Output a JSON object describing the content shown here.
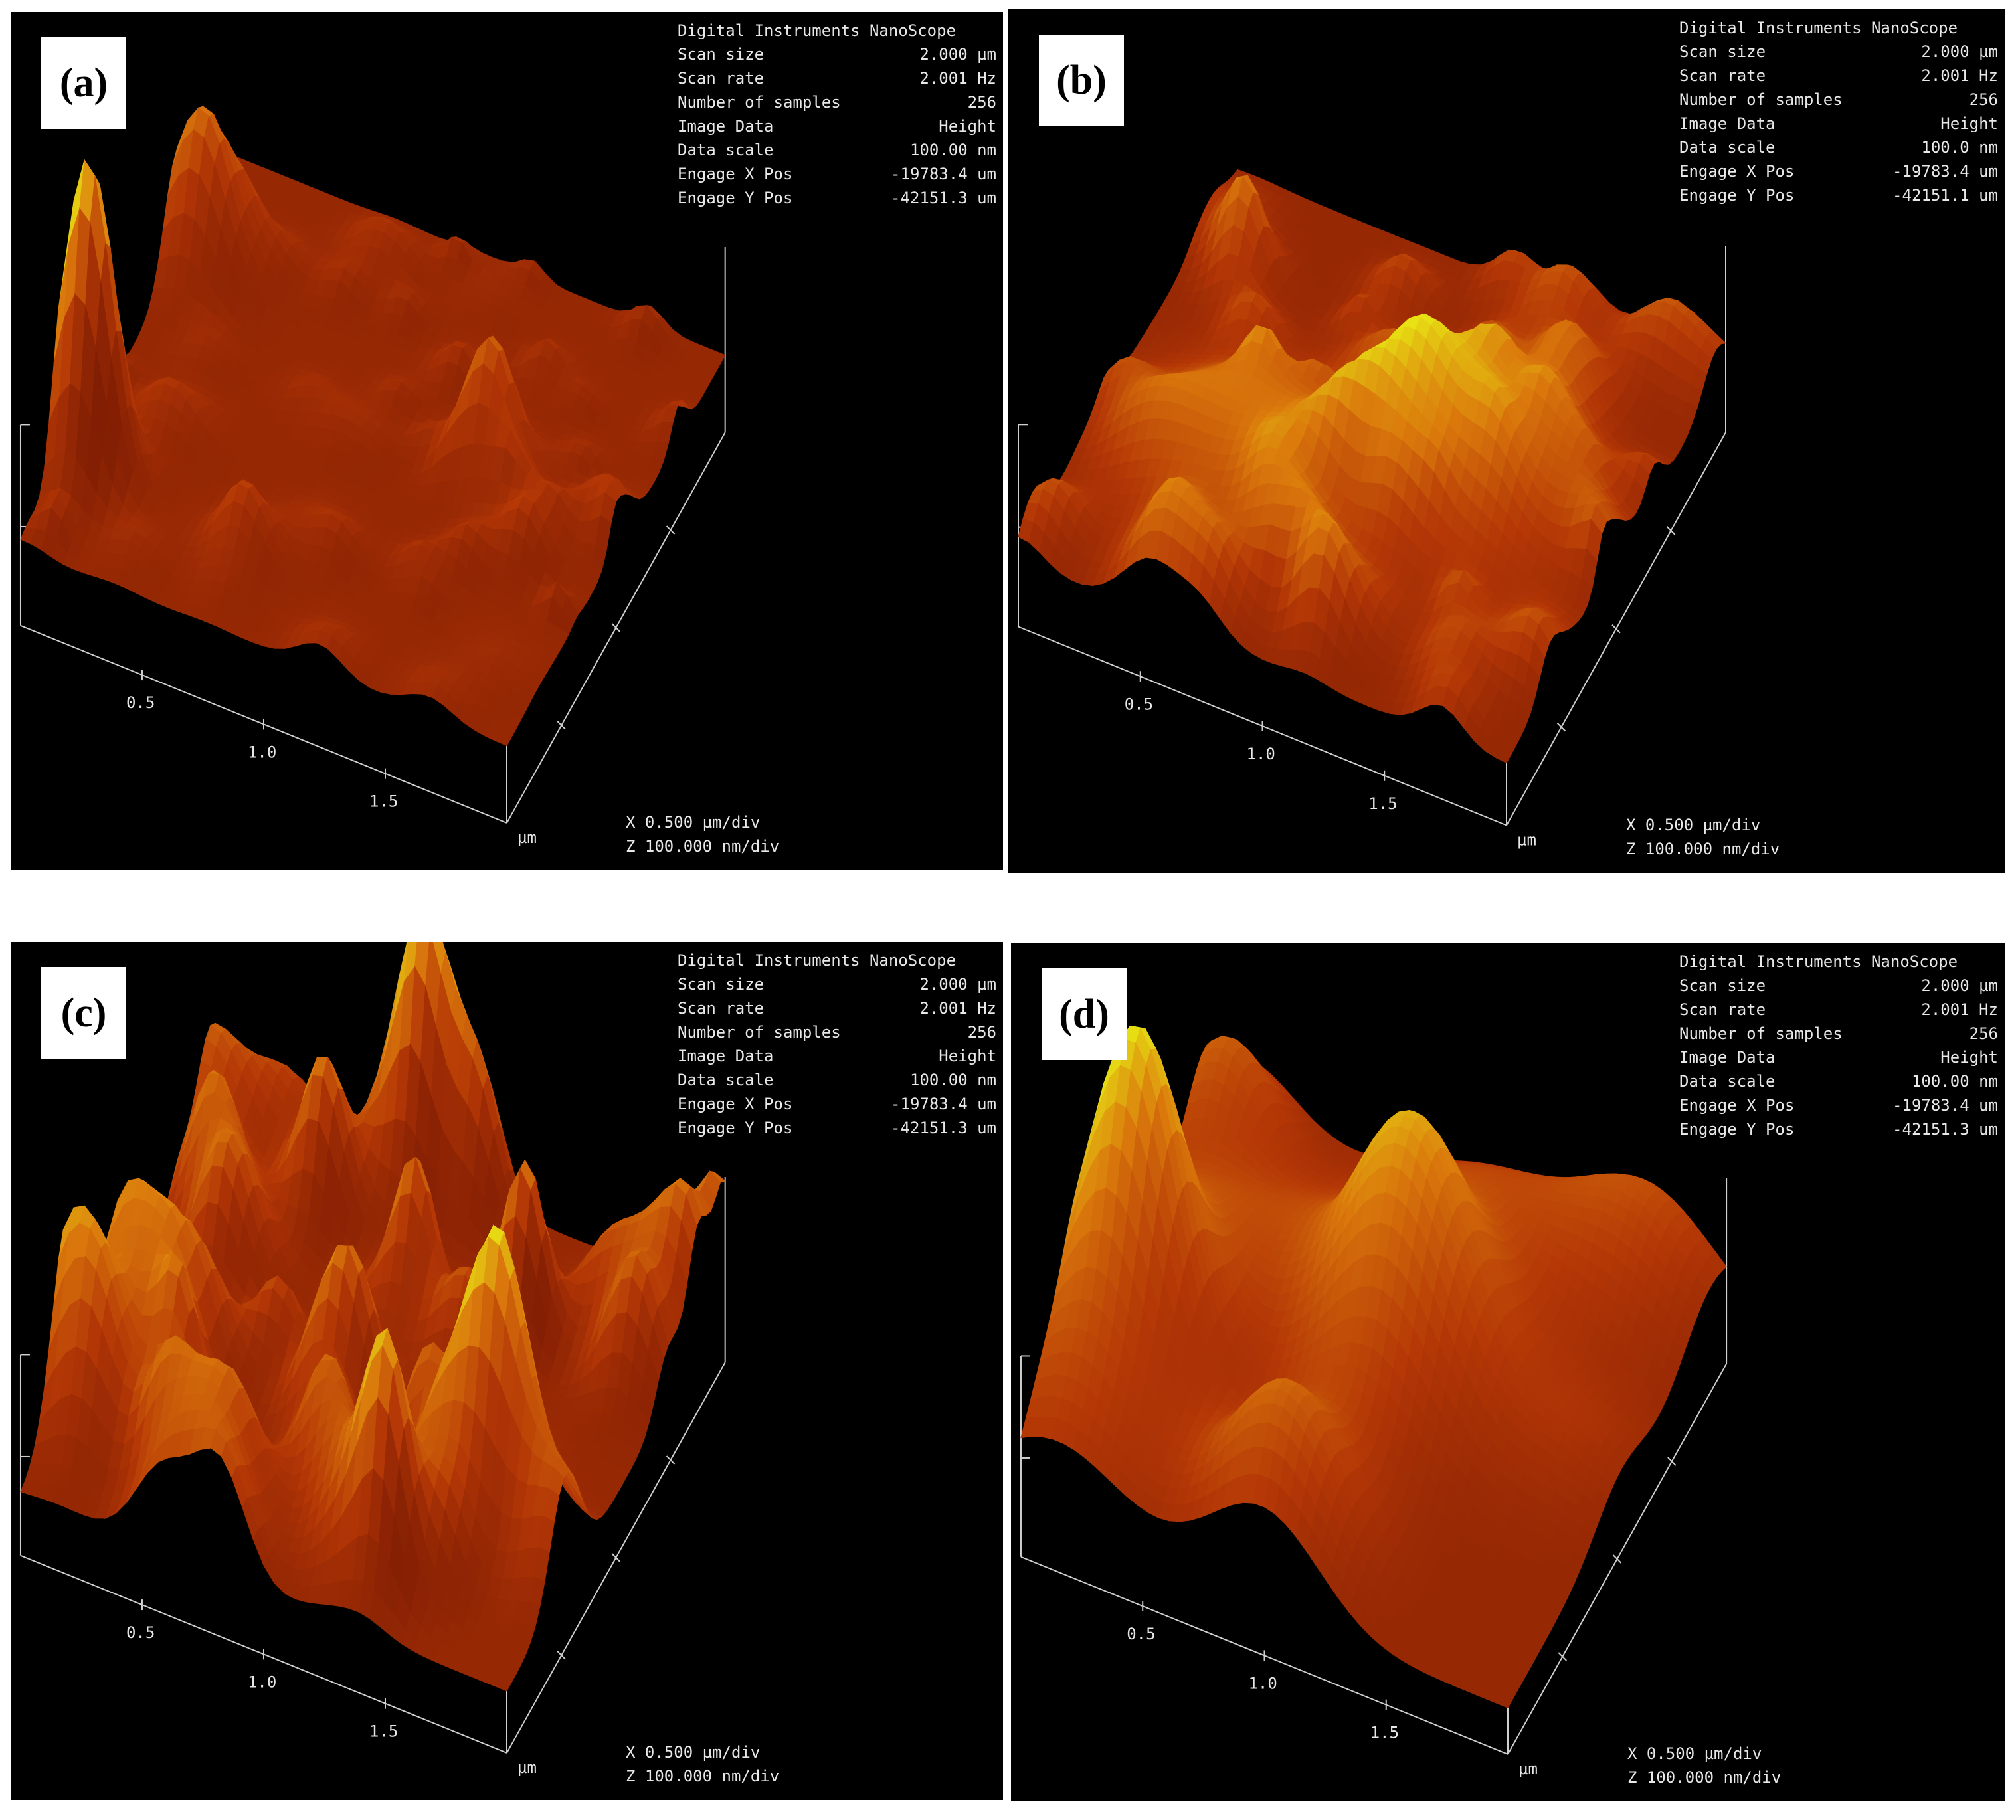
{
  "colors": {
    "background": "#000000",
    "surface_low": "#9e2a05",
    "surface_mid": "#d4670e",
    "surface_high": "#e2e010",
    "text": "#e8e8e8"
  },
  "panels": [
    {
      "label": "(a)",
      "info": {
        "title": "Digital Instruments NanoScope",
        "rows": [
          {
            "k": "Scan size",
            "v": "2.000 µm"
          },
          {
            "k": "Scan rate",
            "v": "2.001 Hz"
          },
          {
            "k": "Number of samples",
            "v": "256"
          },
          {
            "k": "Image Data",
            "v": "Height"
          },
          {
            "k": "Data scale",
            "v": "100.00 nm"
          },
          {
            "k": "Engage X Pos",
            "v": "-19783.4 um"
          },
          {
            "k": "Engage Y Pos",
            "v": "-42151.3 um"
          }
        ]
      },
      "axis": {
        "ticks": [
          "0.5",
          "1.0",
          "1.5"
        ],
        "unit": "µm"
      },
      "scale": {
        "x": "X  0.500 µm/div",
        "z": "Z  100.000 nm/div"
      }
    },
    {
      "label": "(b)",
      "info": {
        "title": "Digital Instruments NanoScope",
        "rows": [
          {
            "k": "Scan size",
            "v": "2.000 µm"
          },
          {
            "k": "Scan rate",
            "v": "2.001 Hz"
          },
          {
            "k": "Number of samples",
            "v": "256"
          },
          {
            "k": "Image Data",
            "v": "Height"
          },
          {
            "k": "Data scale",
            "v": "100.0 nm"
          },
          {
            "k": "Engage X Pos",
            "v": "-19783.4 um"
          },
          {
            "k": "Engage Y Pos",
            "v": "-42151.1 um"
          }
        ]
      },
      "axis": {
        "ticks": [
          "0.5",
          "1.0",
          "1.5"
        ],
        "unit": "µm"
      },
      "scale": {
        "x": "X  0.500 µm/div",
        "z": "Z  100.000 nm/div"
      }
    },
    {
      "label": "(c)",
      "info": {
        "title": "Digital Instruments NanoScope",
        "rows": [
          {
            "k": "Scan size",
            "v": "2.000 µm"
          },
          {
            "k": "Scan rate",
            "v": "2.001 Hz"
          },
          {
            "k": "Number of samples",
            "v": "256"
          },
          {
            "k": "Image Data",
            "v": "Height"
          },
          {
            "k": "Data scale",
            "v": "100.00 nm"
          },
          {
            "k": "Engage X Pos",
            "v": "-19783.4 um"
          },
          {
            "k": "Engage Y Pos",
            "v": "-42151.3 um"
          }
        ]
      },
      "axis": {
        "ticks": [
          "0.5",
          "1.0",
          "1.5"
        ],
        "unit": "µm"
      },
      "scale": {
        "x": "X  0.500 µm/div",
        "z": "Z  100.000 nm/div"
      }
    },
    {
      "label": "(d)",
      "info": {
        "title": "Digital Instruments NanoScope",
        "rows": [
          {
            "k": "Scan size",
            "v": "2.000 µm"
          },
          {
            "k": "Scan rate",
            "v": "2.001 Hz"
          },
          {
            "k": "Number of samples",
            "v": "256"
          },
          {
            "k": "Image Data",
            "v": "Height"
          },
          {
            "k": "Data scale",
            "v": "100.00 nm"
          },
          {
            "k": "Engage X Pos",
            "v": "-19783.4 um"
          },
          {
            "k": "Engage Y Pos",
            "v": "-42151.3 um"
          }
        ]
      },
      "axis": {
        "ticks": [
          "0.5",
          "1.0",
          "1.5"
        ],
        "unit": "µm"
      },
      "scale": {
        "x": "X  0.500 µm/div",
        "z": "Z  100.000 nm/div"
      }
    }
  ]
}
